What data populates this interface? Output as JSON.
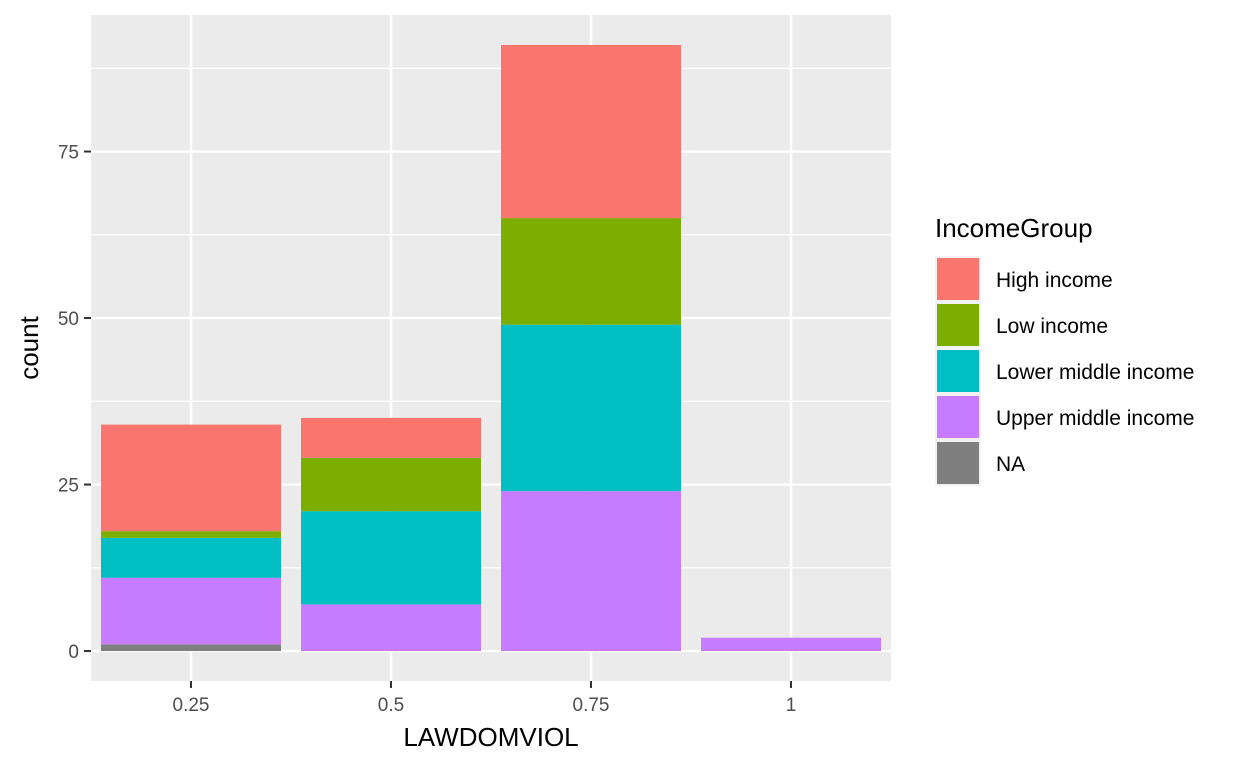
{
  "chart_data": {
    "type": "bar",
    "stacked": true,
    "categories": [
      "0.25",
      "0.5",
      "0.75",
      "1"
    ],
    "x": [
      0.25,
      0.5,
      0.75,
      1
    ],
    "xlabel": "LAWDOMVIOL",
    "ylabel": "count",
    "ylim": [
      -4.5,
      95.5
    ],
    "yticks": [
      0,
      25,
      50,
      75
    ],
    "grid": true,
    "legend": {
      "title": "IncomeGroup",
      "position": "right"
    },
    "series": [
      {
        "name": "High income",
        "color": "#F8766D",
        "values": [
          16,
          6,
          26,
          0
        ]
      },
      {
        "name": "Low income",
        "color": "#7CAE00",
        "values": [
          1,
          8,
          16,
          0
        ]
      },
      {
        "name": "Lower middle income",
        "color": "#00BFC4",
        "values": [
          6,
          14,
          25,
          0
        ]
      },
      {
        "name": "Upper middle income",
        "color": "#C77CFF",
        "values": [
          10,
          7,
          24,
          2
        ]
      },
      {
        "name": "NA",
        "color": "#7F7F7F",
        "values": [
          1,
          0,
          0,
          0
        ]
      }
    ],
    "panel_background": "#EBEBEB",
    "grid_color": "#FFFFFF"
  }
}
